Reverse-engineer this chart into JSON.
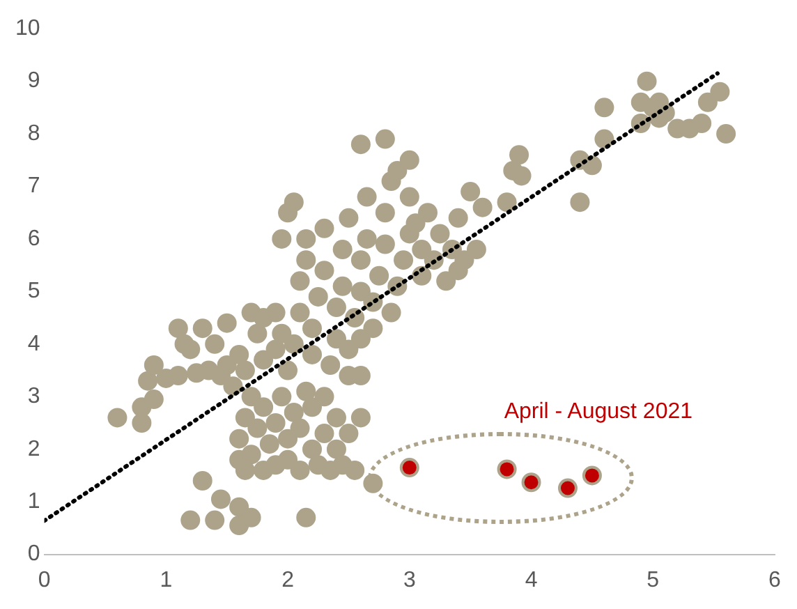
{
  "chart_data": {
    "type": "scatter",
    "xlim": [
      0,
      6
    ],
    "xticks": [
      0,
      1,
      2,
      3,
      4,
      5,
      6
    ],
    "ylim": [
      0,
      10
    ],
    "yticks": [
      0,
      1,
      2,
      3,
      4,
      5,
      6,
      7,
      8,
      9,
      10
    ],
    "grid": false,
    "legend": false,
    "marker": "circle",
    "annotations": [
      "April - August 2021"
    ],
    "series": [
      {
        "color": "#aca38a",
        "x": [
          1.2,
          1.3,
          1.4,
          1.45,
          1.6,
          1.6,
          1.7,
          2.15,
          1.6,
          2.7,
          0.6,
          0.8,
          0.8,
          0.85,
          0.9,
          0.9,
          1.0,
          1.1,
          1.1,
          1.15,
          1.2,
          1.25,
          1.3,
          1.35,
          1.4,
          1.45,
          1.5,
          1.5,
          1.55,
          1.6,
          1.65,
          1.7,
          1.75,
          1.8,
          1.8,
          1.9,
          1.9,
          1.95,
          1.6,
          1.65,
          1.7,
          1.7,
          1.75,
          1.8,
          1.8,
          1.85,
          1.9,
          1.9,
          1.95,
          2.0,
          2.0,
          2.05,
          2.1,
          2.1,
          2.15,
          2.2,
          2.2,
          2.25,
          2.3,
          2.3,
          2.35,
          2.4,
          2.4,
          2.45,
          2.5,
          2.55,
          1.65,
          2.6,
          2.6,
          2.0,
          2.05,
          2.1,
          2.1,
          2.15,
          2.15,
          2.2,
          2.2,
          2.25,
          2.3,
          2.3,
          2.35,
          2.4,
          2.4,
          2.45,
          2.45,
          2.5,
          2.5,
          2.55,
          2.6,
          2.6,
          2.65,
          2.65,
          2.7,
          2.7,
          2.75,
          2.8,
          2.8,
          2.85,
          2.9,
          2.95,
          3.0,
          2.0,
          1.95,
          2.05,
          2.6,
          2.8,
          2.9,
          3.0,
          2.85,
          3.0,
          3.05,
          3.1,
          3.15,
          3.2,
          3.25,
          3.3,
          3.35,
          3.4,
          3.45,
          3.5,
          3.55,
          3.6,
          3.4,
          3.1,
          2.5,
          2.6,
          3.8,
          3.85,
          3.9,
          3.92,
          4.4,
          4.4,
          4.5,
          4.6,
          4.6,
          4.9,
          4.9,
          4.95,
          5.0,
          5.05,
          5.1,
          5.2,
          5.3,
          5.4,
          5.45,
          5.55,
          5.6,
          5.05
        ],
        "values": [
          0.65,
          1.4,
          0.65,
          1.05,
          0.9,
          0.55,
          0.7,
          0.7,
          1.8,
          1.35,
          2.6,
          2.5,
          2.8,
          3.3,
          2.95,
          3.6,
          3.35,
          3.4,
          4.3,
          4.0,
          3.9,
          3.45,
          4.3,
          3.5,
          4.0,
          3.4,
          3.6,
          4.4,
          3.2,
          3.8,
          3.5,
          4.6,
          4.2,
          4.5,
          3.7,
          4.6,
          3.9,
          4.2,
          2.2,
          2.6,
          3.0,
          1.9,
          2.4,
          1.6,
          2.8,
          2.1,
          2.5,
          1.7,
          3.0,
          2.2,
          1.8,
          2.7,
          1.6,
          2.4,
          3.1,
          2.0,
          2.8,
          1.7,
          2.3,
          3.0,
          1.6,
          2.0,
          2.6,
          1.7,
          2.3,
          1.6,
          1.6,
          2.6,
          3.4,
          3.5,
          4.0,
          4.6,
          5.2,
          5.6,
          6.0,
          3.8,
          4.3,
          4.9,
          5.4,
          6.2,
          3.6,
          4.1,
          4.7,
          5.1,
          5.8,
          6.4,
          3.9,
          4.5,
          5.0,
          5.6,
          6.0,
          6.8,
          4.3,
          4.8,
          5.3,
          5.9,
          6.5,
          4.6,
          5.1,
          5.6,
          6.1,
          6.5,
          6.0,
          6.7,
          7.8,
          7.9,
          7.3,
          7.5,
          7.1,
          6.8,
          6.3,
          5.8,
          6.5,
          5.6,
          6.1,
          5.2,
          5.8,
          6.4,
          5.6,
          6.9,
          5.8,
          6.6,
          5.4,
          5.3,
          3.4,
          4.1,
          6.7,
          7.3,
          7.6,
          7.2,
          6.7,
          7.5,
          7.4,
          7.9,
          8.5,
          8.2,
          8.6,
          9.0,
          8.5,
          8.3,
          8.4,
          8.1,
          8.1,
          8.2,
          8.6,
          8.8,
          8.0,
          8.6
        ]
      },
      {
        "color": "#c00000",
        "x": [
          3.0,
          3.8,
          4.0,
          4.3,
          4.5
        ],
        "values": [
          1.65,
          1.62,
          1.37,
          1.26,
          1.5
        ]
      },
      {
        "type": "line",
        "color": "#000000",
        "line_style": "dotted",
        "marker": "none",
        "x": [
          0,
          5.53
        ],
        "values": [
          0.64,
          9.15
        ]
      }
    ]
  }
}
